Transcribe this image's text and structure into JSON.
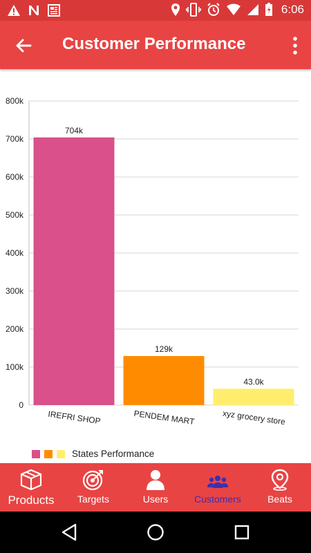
{
  "status_bar": {
    "time": "6:06",
    "icons_left": [
      "alert-icon",
      "n-icon",
      "newspaper-icon"
    ],
    "icons_right": [
      "location-icon",
      "vibrate-icon",
      "alarm-icon",
      "wifi-icon",
      "battery-icon"
    ]
  },
  "appbar": {
    "title": "Customer Performance",
    "back_icon": "arrow-back-icon",
    "menu_icon": "more-vert-icon"
  },
  "chart_data": {
    "type": "bar",
    "categories": [
      "IREFRI SHOP",
      "PENDEM MART",
      "xyz grocery store"
    ],
    "values": [
      704000,
      129000,
      43000
    ],
    "value_labels": [
      "704k",
      "129k",
      "43.0k"
    ],
    "bar_colors": [
      "#d9508a",
      "#ff8c00",
      "#ffee6e"
    ],
    "ylim": [
      0,
      800000
    ],
    "ytick_values": [
      0,
      100000,
      200000,
      300000,
      400000,
      500000,
      600000,
      700000,
      800000
    ],
    "ytick_labels": [
      "0",
      "100k",
      "200k",
      "300k",
      "400k",
      "500k",
      "600k",
      "700k",
      "800k"
    ],
    "grid": "horizontal",
    "legend": {
      "placement": "bottom-left",
      "label": "States Performance",
      "swatches": [
        "#d9508a",
        "#ff8c00",
        "#ffee6e"
      ]
    }
  },
  "bottom_nav": {
    "items": [
      {
        "label": "Products",
        "icon": "box-icon",
        "active": false
      },
      {
        "label": "Targets",
        "icon": "target-icon",
        "active": false
      },
      {
        "label": "Users",
        "icon": "user-icon",
        "active": false
      },
      {
        "label": "Customers",
        "icon": "group-icon",
        "active": true
      },
      {
        "label": "Beats",
        "icon": "map-pin-icon",
        "active": false
      }
    ]
  },
  "colors": {
    "primary": "#e84444",
    "status_bar": "#d93838",
    "active_nav": "#3d2fb0"
  },
  "system_nav": {
    "icons": [
      "back-triangle-icon",
      "home-circle-icon",
      "recents-square-icon"
    ]
  }
}
